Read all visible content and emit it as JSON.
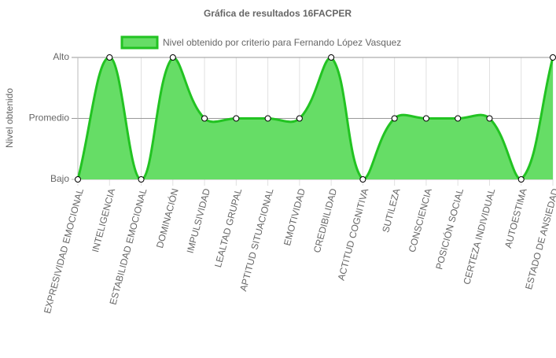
{
  "chart_data": {
    "type": "area",
    "title": "Gráfica de resultados 16FACPER",
    "y_label": "Nivel obtenido",
    "categories": [
      "EXPRESIVIDAD EMOCIONAL",
      "INTELIGENCIA",
      "ESTABILIDAD EMOCIONAL",
      "DOMINACIÓN",
      "IMPULSIVIDAD",
      "LEALTAD GRUPAL",
      "APTITUD SITUACIONAL",
      "EMOTIVIDAD",
      "CREDIBILIDAD",
      "ACTITUD COGNITIVA",
      "SUTILEZA",
      "CONSCIENCIA",
      "POSICIÓN SOCIAL",
      "CERTEZA INDIVIDUAL",
      "AUTOESTIMA",
      "ESTADO DE ANSIEDAD"
    ],
    "series": [
      {
        "name": "Nivel obtenido por criterio para Fernando López Vasquez",
        "color": "#22c322",
        "fill": "#66dd66",
        "values": [
          1,
          3,
          1,
          3,
          2,
          2,
          2,
          2,
          3,
          1,
          2,
          2,
          2,
          2,
          1,
          3
        ]
      }
    ],
    "ylim": [
      1,
      3
    ],
    "yticks": [
      {
        "value": 1,
        "label": "Bajo"
      },
      {
        "value": 2,
        "label": "Promedio"
      },
      {
        "value": 3,
        "label": "Alto"
      }
    ],
    "grid": true,
    "legend": "top"
  }
}
